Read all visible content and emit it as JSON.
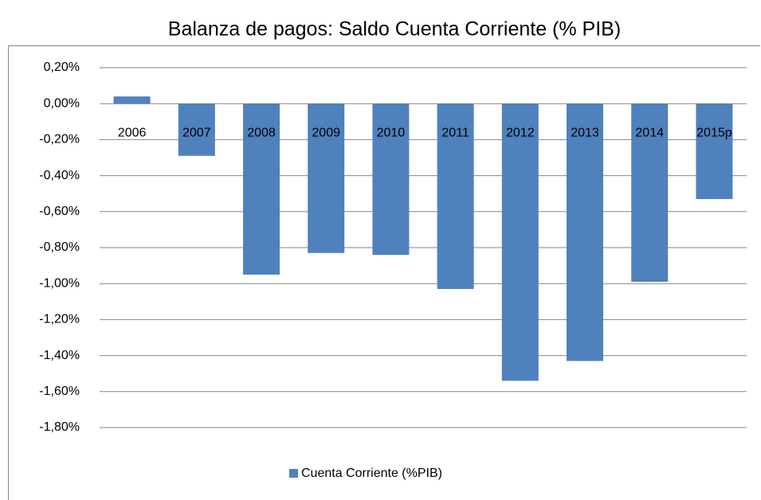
{
  "chart_data": {
    "type": "bar",
    "title": "Balanza de pagos: Saldo Cuenta Corriente (% PIB)",
    "categories": [
      "2006",
      "2007",
      "2008",
      "2009",
      "2010",
      "2011",
      "2012",
      "2013",
      "2014",
      "2015p"
    ],
    "series": [
      {
        "name": "Cuenta Corriente (%PIB)",
        "color": "#4f81bd",
        "values": [
          0.04,
          -0.29,
          -0.95,
          -0.83,
          -0.84,
          -1.03,
          -1.54,
          -1.43,
          -0.99,
          -0.53
        ]
      }
    ],
    "ylim": [
      -1.8,
      0.2
    ],
    "yticks": [
      {
        "value": 0.2,
        "label": "0,20%"
      },
      {
        "value": 0,
        "label": "0,00%"
      },
      {
        "value": -0.2,
        "label": "-0,20%"
      },
      {
        "value": -0.4,
        "label": "-0,40%"
      },
      {
        "value": -0.6,
        "label": "-0,60%"
      },
      {
        "value": -0.8,
        "label": "-0,80%"
      },
      {
        "value": -1.0,
        "label": "-1,00%"
      },
      {
        "value": -1.2,
        "label": "-1,20%"
      },
      {
        "value": -1.4,
        "label": "-1,40%"
      },
      {
        "value": -1.6,
        "label": "-1,60%"
      },
      {
        "value": -1.8,
        "label": "-1,80%"
      }
    ],
    "grid": true,
    "legend": "bottom"
  }
}
